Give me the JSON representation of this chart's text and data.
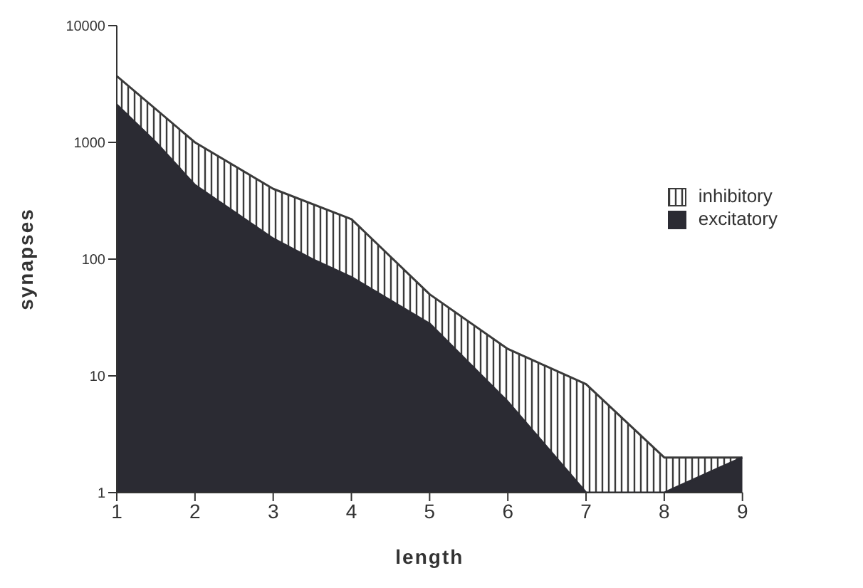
{
  "chart_data": {
    "type": "area",
    "xlabel": "length",
    "ylabel": "synapses",
    "log": "y",
    "xlim": [
      1,
      9
    ],
    "xticks": [
      1,
      2,
      3,
      4,
      5,
      6,
      7,
      8,
      9
    ],
    "ylim": [
      1,
      10000
    ],
    "yticks": [
      1,
      10,
      100,
      1000,
      10000
    ],
    "legend": "top right",
    "series": [
      {
        "name": "inhibitory",
        "color": "#3a3a3a",
        "x": [
          1,
          2,
          3,
          4,
          5,
          6,
          7,
          8,
          9
        ],
        "values": [
          3700,
          1000,
          400,
          220,
          50,
          17,
          8.5,
          2,
          2
        ]
      },
      {
        "name": "excitatory",
        "color": "#2b2b33",
        "x": [
          1,
          1.5,
          2,
          3,
          3.5,
          4,
          5,
          6,
          7,
          8,
          9
        ],
        "values": [
          2100,
          1000,
          430,
          150,
          100,
          70,
          28,
          6,
          1,
          1,
          2
        ]
      }
    ]
  }
}
